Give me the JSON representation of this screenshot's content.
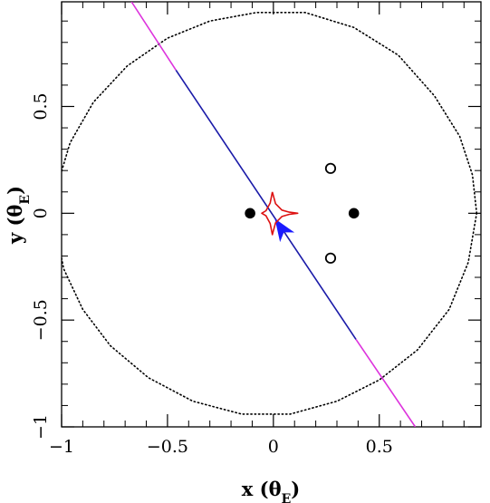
{
  "chart_data": {
    "type": "scatter",
    "title": "",
    "xlabel": "x (θE)",
    "ylabel": "y (θE)",
    "xlabel_parts": {
      "main": "x (θ",
      "sub": "E",
      "close": ")"
    },
    "ylabel_parts": {
      "main": "y (θ",
      "sub": "E",
      "close": ")"
    },
    "xlim": [
      -1,
      0.98
    ],
    "ylim": [
      -1,
      0.99
    ],
    "x_major_ticks": [
      -1,
      -0.5,
      0,
      0.5
    ],
    "y_major_ticks": [
      -1,
      -0.5,
      0,
      0.5
    ],
    "x_tick_labels": [
      "−1",
      "−0.5",
      "0",
      "0.5"
    ],
    "y_tick_labels": [
      "−1",
      "−0.5",
      "0",
      "0.5"
    ],
    "minor_tick_step": 0.1,
    "grid": false,
    "legend": "none",
    "lens_masses": {
      "color": "#000000",
      "points": [
        {
          "x": -0.11,
          "y": 0.0
        },
        {
          "x": 0.38,
          "y": 0.0
        }
      ]
    },
    "planet_images": {
      "color": "#000000",
      "points": [
        {
          "x": 0.27,
          "y": 0.21
        },
        {
          "x": 0.27,
          "y": -0.21
        }
      ]
    },
    "critical_curve": {
      "style": "dotted",
      "color": "#000000",
      "points": [
        [
          0.96,
          0.0
        ],
        [
          0.94,
          0.18
        ],
        [
          0.88,
          0.36
        ],
        [
          0.76,
          0.55
        ],
        [
          0.59,
          0.74
        ],
        [
          0.38,
          0.87
        ],
        [
          0.15,
          0.94
        ],
        [
          -0.08,
          0.94
        ],
        [
          -0.3,
          0.9
        ],
        [
          -0.5,
          0.82
        ],
        [
          -0.69,
          0.69
        ],
        [
          -0.85,
          0.52
        ],
        [
          -0.96,
          0.33
        ],
        [
          -1.02,
          0.13
        ],
        [
          -1.03,
          -0.06
        ],
        [
          -0.99,
          -0.26
        ],
        [
          -0.9,
          -0.45
        ],
        [
          -0.77,
          -0.62
        ],
        [
          -0.59,
          -0.77
        ],
        [
          -0.38,
          -0.88
        ],
        [
          -0.15,
          -0.94
        ],
        [
          0.08,
          -0.94
        ],
        [
          0.3,
          -0.88
        ],
        [
          0.5,
          -0.78
        ],
        [
          0.68,
          -0.64
        ],
        [
          0.83,
          -0.45
        ],
        [
          0.92,
          -0.23
        ],
        [
          0.96,
          0.0
        ]
      ]
    },
    "caustic": {
      "color": "#dd1111",
      "points": [
        [
          -0.005,
          0.1
        ],
        [
          0.01,
          0.045
        ],
        [
          0.04,
          0.015
        ],
        [
          0.075,
          0.005
        ],
        [
          0.115,
          0.0
        ],
        [
          0.075,
          -0.005
        ],
        [
          0.04,
          -0.015
        ],
        [
          0.01,
          -0.045
        ],
        [
          -0.005,
          -0.1
        ],
        [
          -0.015,
          -0.048
        ],
        [
          -0.035,
          -0.012
        ],
        [
          -0.055,
          0.0
        ],
        [
          -0.035,
          0.012
        ],
        [
          -0.015,
          0.048
        ],
        [
          -0.005,
          0.1
        ]
      ]
    },
    "source_trajectory": {
      "segments": [
        {
          "color": "#dd33dd",
          "points": [
            [
              -0.67,
              0.99
            ],
            [
              -0.46,
              0.67
            ]
          ]
        },
        {
          "color": "#1a1aa8",
          "points": [
            [
              -0.46,
              0.67
            ],
            [
              0.39,
              -0.59
            ]
          ]
        },
        {
          "color": "#dd33dd",
          "points": [
            [
              0.39,
              -0.59
            ],
            [
              0.67,
              -1.0
            ]
          ]
        }
      ],
      "arrow": {
        "color": "#1a1aff",
        "tip": [
          0.01,
          -0.03
        ],
        "direction": [
          -0.555,
          0.832
        ]
      }
    }
  }
}
